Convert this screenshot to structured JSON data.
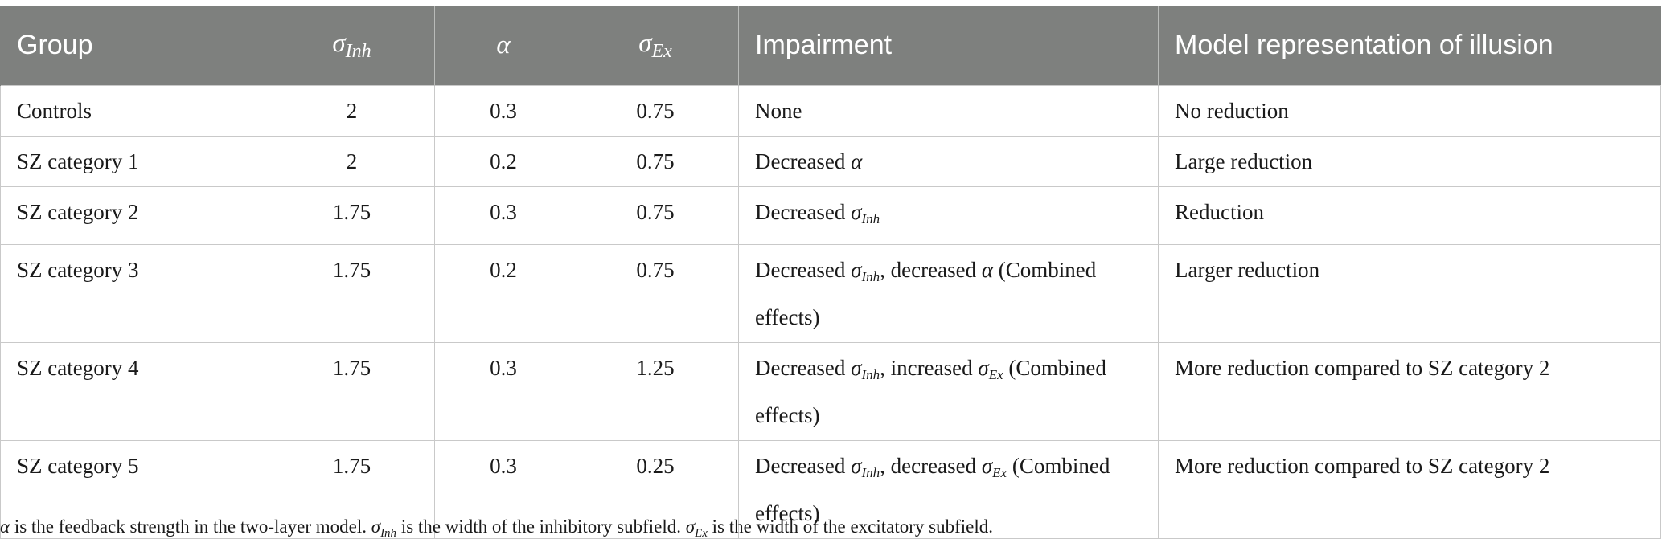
{
  "table": {
    "headers": {
      "group": "Group",
      "sigma_inh": "σ",
      "sigma_inh_sub": "Inh",
      "alpha": "α",
      "sigma_ex": "σ",
      "sigma_ex_sub": "Ex",
      "impairment": "Impairment",
      "model": "Model representation of illusion"
    },
    "rows": [
      {
        "group": "Controls",
        "sigma_inh": "2",
        "alpha": "0.3",
        "sigma_ex": "0.75",
        "impairment": {
          "t1": "None"
        },
        "model": "No reduction"
      },
      {
        "group": "SZ category 1",
        "sigma_inh": "2",
        "alpha": "0.2",
        "sigma_ex": "0.75",
        "impairment": {
          "t1": "Decreased ",
          "g1": "α"
        },
        "model": "Large reduction"
      },
      {
        "group": "SZ category 2",
        "sigma_inh": "1.75",
        "alpha": "0.3",
        "sigma_ex": "0.75",
        "impairment": {
          "t1": "Decreased ",
          "s1": "σ",
          "s1sub": "Inh"
        },
        "model": "Reduction"
      },
      {
        "group": "SZ category 3",
        "sigma_inh": "1.75",
        "alpha": "0.2",
        "sigma_ex": "0.75",
        "impairment": {
          "t1": "Decreased ",
          "s1": "σ",
          "s1sub": "Inh",
          "t2": ", decreased ",
          "g2": "α",
          "t3": " (Combined effects)"
        },
        "model": "Larger reduction"
      },
      {
        "group": "SZ category 4",
        "sigma_inh": "1.75",
        "alpha": "0.3",
        "sigma_ex": "1.25",
        "impairment": {
          "t1": "Decreased ",
          "s1": "σ",
          "s1sub": "Inh",
          "t2": ", increased ",
          "s2": "σ",
          "s2sub": "Ex",
          "t3": " (Combined effects)"
        },
        "model": "More reduction compared to SZ category 2"
      },
      {
        "group": "SZ category 5",
        "sigma_inh": "1.75",
        "alpha": "0.3",
        "sigma_ex": "0.25",
        "impairment": {
          "t1": "Decreased ",
          "s1": "σ",
          "s1sub": "Inh",
          "t2": ", decreased ",
          "s2": "σ",
          "s2sub": "Ex",
          "t3": " (Combined effects)"
        },
        "model": "More reduction compared to SZ category 2"
      }
    ]
  },
  "footnote": {
    "alpha": "α",
    "t1": " is the feedback strength in the two-layer model. ",
    "s1": "σ",
    "s1sub": "Inh",
    "t2": " is the width of the inhibitory subfield. ",
    "s2": "σ",
    "s2sub": "Ex",
    "t3": " is the width of the excitatory subfield."
  }
}
